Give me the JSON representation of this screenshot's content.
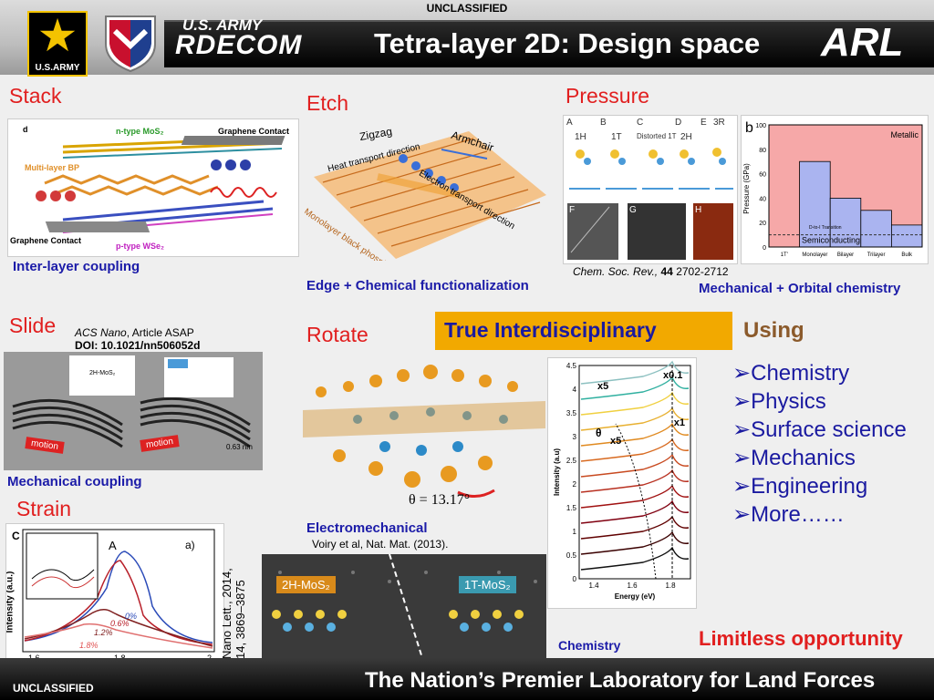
{
  "header": {
    "classification": "UNCLASSIFIED",
    "army_text": "U.S.ARMY",
    "org_small": "U.S. ARMY",
    "org_big": "RDECOM",
    "title": "Tetra-layer 2D: Design space",
    "arl": "ARL"
  },
  "footer": {
    "classification": "UNCLASSIFIED",
    "tagline": "The Nation’s Premier Laboratory for Land Forces"
  },
  "sections": {
    "stack": {
      "label": "Stack",
      "caption": "Inter-layer coupling",
      "d": "d",
      "ntype": "n-type MoS₂",
      "graphene1": "Graphene Contact",
      "bp": "Multi-layer BP",
      "graphene2": "Graphene Contact",
      "ptype": "p-type WSe₂"
    },
    "etch": {
      "label": "Etch",
      "caption": "Edge + Chemical functionalization",
      "zigzag": "Zigzag",
      "armchair": "Armchair",
      "heat": "Heat transport direction",
      "electron": "Electron transport direction",
      "mono": "Monolayer black phosphorus (BP)"
    },
    "pressure": {
      "label": "Pressure",
      "caption": "Mechanical + Orbital chemistry",
      "cite_journal": "Chem. Soc. Rev.,",
      "cite_vol": "44",
      "cite_pages": "2702-2712",
      "panels": [
        "A",
        "B",
        "C",
        "D",
        "E",
        "F",
        "G",
        "H"
      ],
      "phases": [
        "1H",
        "1T",
        "Distorted 1T",
        "2H",
        "3R"
      ]
    },
    "slide": {
      "label": "Slide",
      "caption": "Mechanical coupling",
      "cite_journal": "ACS Nano",
      "cite_rest": ", Article ASAP",
      "doi": "DOI: 10.1021/nn506052d",
      "motion": "motion",
      "scale": "0.63 nm",
      "mos2": "2H-MoS₂"
    },
    "rotate": {
      "label": "Rotate",
      "caption": "Electromechanical",
      "cite": "Voiry et al, Nat. Mat. (2013).",
      "theta": "θ = 13.17°",
      "phase1": "2H-MoS₂",
      "phase2": "1T-MoS₂"
    },
    "strain": {
      "label": "Strain",
      "cite1": "Nano Lett., 2014,",
      "cite2": "14, 3869–3875",
      "panel": "C",
      "panel_a": "a)",
      "ylabel": "Intensity (a.u.)",
      "peak": "A",
      "pct": [
        "1.8%",
        "1.2%",
        "0.6%",
        "0%"
      ],
      "ticks": [
        "1.6",
        "1.8",
        "2"
      ]
    },
    "chemistry": {
      "caption": "Chemistry"
    }
  },
  "pressure_chart": {
    "panel": "b",
    "ylabel": "Pressure (GPa)",
    "metallic": "Metallic",
    "semi": "Semiconducting",
    "transition": "D-to-I Transition",
    "categories": [
      "1T'",
      "Monolayer",
      "Bilayer",
      "Trilayer",
      "Bulk"
    ],
    "values": [
      0,
      70,
      40,
      30,
      18
    ],
    "yticks": [
      "0",
      "20",
      "40",
      "60",
      "80",
      "100"
    ],
    "ylim": [
      0,
      100
    ],
    "dashed_at": 10
  },
  "pl_chart": {
    "ylabel": "Intensity (a.u)",
    "xlabel": "Energy (eV)",
    "xticks": [
      "1.4",
      "1.6",
      "1.8"
    ],
    "yticks": [
      "0",
      "0.5",
      "1",
      "1.5",
      "2",
      "2.5",
      "3",
      "3.5",
      "4",
      "4.5"
    ],
    "x5a": "x5",
    "x01": "x0.1",
    "x1": "x1",
    "theta": "θ",
    "x5b": "x5"
  },
  "interdisc": {
    "label": "True Interdisciplinary",
    "using": "Using",
    "items": [
      "➢Chemistry",
      "➢Physics",
      "➢Surface science",
      "➢Mechanics",
      "➢Engineering",
      "➢More……"
    ],
    "limitless": "Limitless opportunity"
  },
  "colors": {
    "accent_red": "#e11f1f",
    "accent_blue": "#1b1ba8",
    "orange": "#f2a900",
    "army_gold": "#f3c300"
  }
}
